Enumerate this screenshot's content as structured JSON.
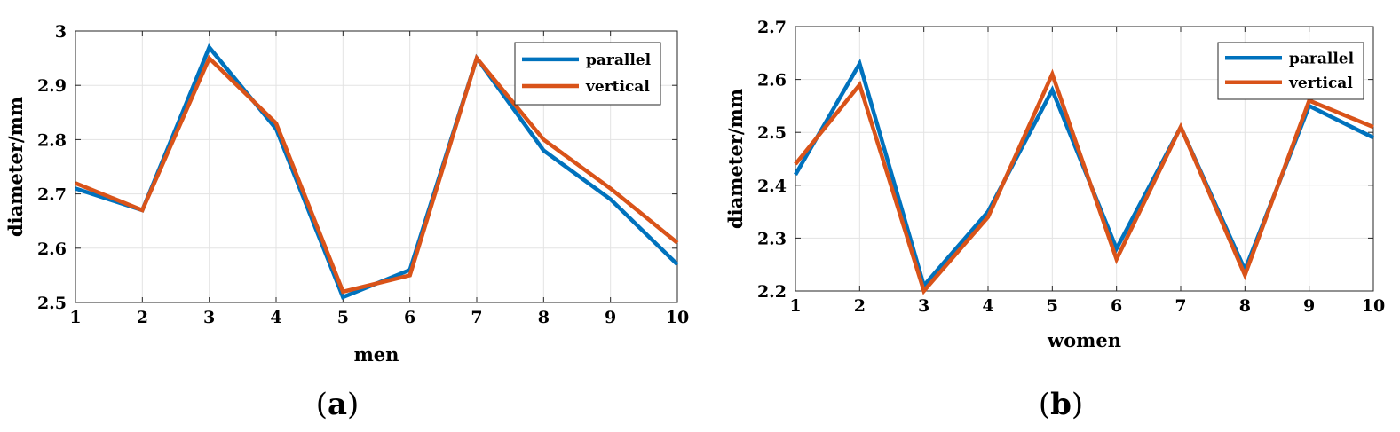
{
  "chart_data": [
    {
      "type": "line",
      "panel_label": "a",
      "xlabel": "men",
      "ylabel": "diameter/mm",
      "x": [
        1,
        2,
        3,
        4,
        5,
        6,
        7,
        8,
        9,
        10
      ],
      "xlim": [
        1,
        10
      ],
      "ylim": [
        2.5,
        3.0
      ],
      "xticks": [
        "1",
        "2",
        "3",
        "4",
        "5",
        "6",
        "7",
        "8",
        "9",
        "10"
      ],
      "yticks": [
        "2.5",
        "2.6",
        "2.7",
        "2.8",
        "2.9",
        "3"
      ],
      "ytick_values": [
        2.5,
        2.6,
        2.7,
        2.8,
        2.9,
        3.0
      ],
      "grid": true,
      "legend_position": "top-right",
      "series": [
        {
          "name": "parallel",
          "color": "#0072BD",
          "values": [
            2.71,
            2.67,
            2.97,
            2.82,
            2.51,
            2.56,
            2.95,
            2.78,
            2.69,
            2.57
          ]
        },
        {
          "name": "vertical",
          "color": "#D95319",
          "values": [
            2.72,
            2.67,
            2.95,
            2.83,
            2.52,
            2.55,
            2.95,
            2.8,
            2.71,
            2.61
          ]
        }
      ]
    },
    {
      "type": "line",
      "panel_label": "b",
      "xlabel": "women",
      "ylabel": "diameter/mm",
      "x": [
        1,
        2,
        3,
        4,
        5,
        6,
        7,
        8,
        9,
        10
      ],
      "xlim": [
        1,
        10
      ],
      "ylim": [
        2.2,
        2.7
      ],
      "xticks": [
        "1",
        "2",
        "3",
        "4",
        "5",
        "6",
        "7",
        "8",
        "9",
        "10"
      ],
      "yticks": [
        "2.2",
        "2.3",
        "2.4",
        "2.5",
        "2.6",
        "2.7"
      ],
      "ytick_values": [
        2.2,
        2.3,
        2.4,
        2.5,
        2.6,
        2.7
      ],
      "grid": true,
      "legend_position": "top-right",
      "series": [
        {
          "name": "parallel",
          "color": "#0072BD",
          "values": [
            2.42,
            2.63,
            2.21,
            2.35,
            2.58,
            2.28,
            2.51,
            2.24,
            2.55,
            2.49
          ]
        },
        {
          "name": "vertical",
          "color": "#D95319",
          "values": [
            2.44,
            2.59,
            2.2,
            2.34,
            2.61,
            2.26,
            2.51,
            2.23,
            2.56,
            2.51
          ]
        }
      ]
    }
  ]
}
